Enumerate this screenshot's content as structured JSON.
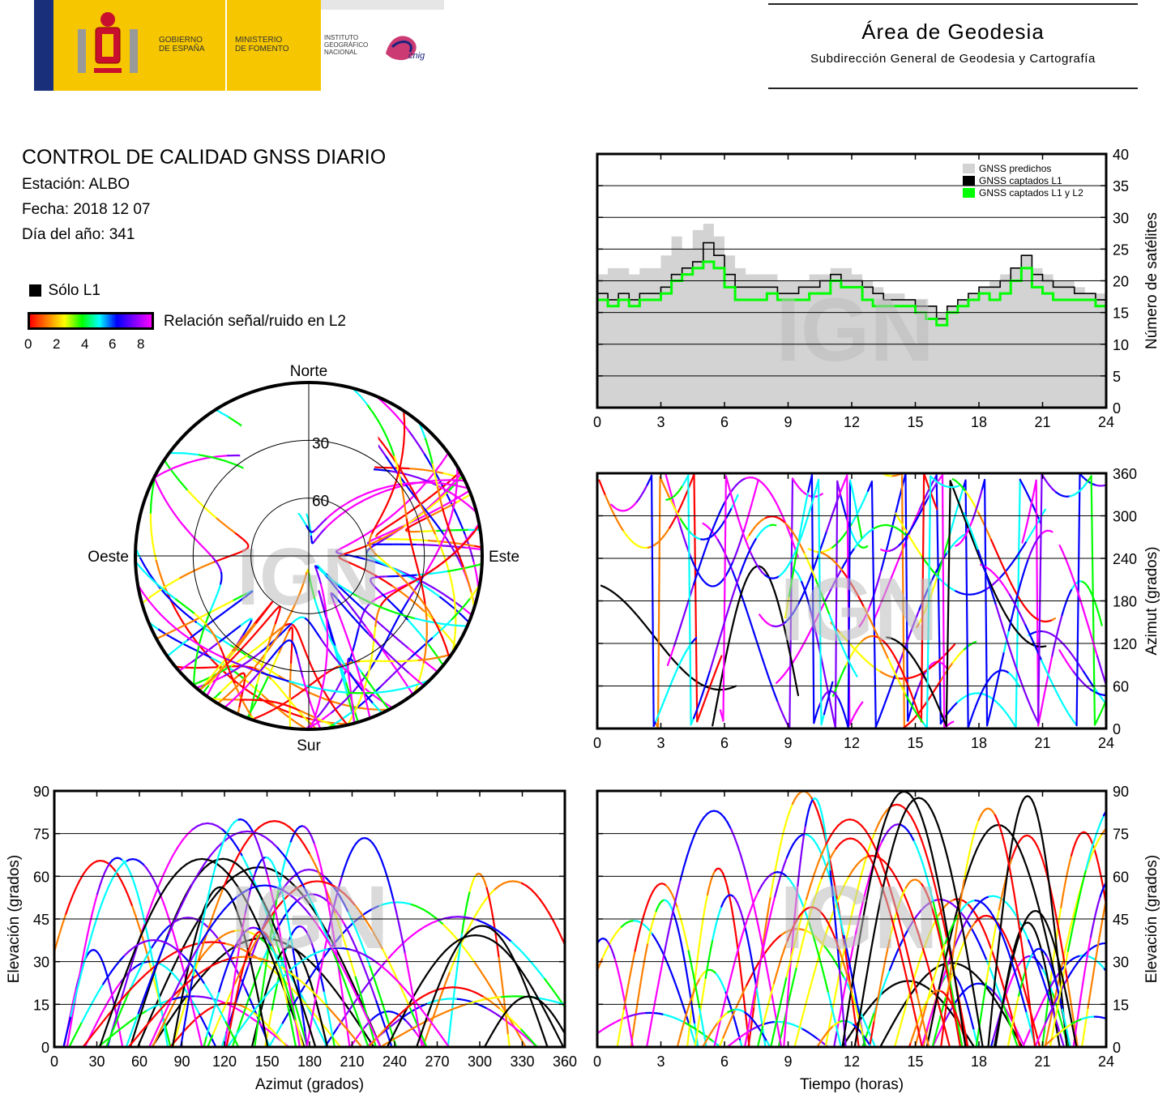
{
  "header": {
    "gov_line1": "GOBIERNO",
    "gov_line2": "DE ESPAÑA",
    "ministry_line1": "MINISTERIO",
    "ministry_line2": "DE FOMENTO",
    "institute_line1": "INSTITUTO",
    "institute_line2": "GEOGRÁFICO",
    "institute_line3": "NACIONAL",
    "cnig_logo": "cnig",
    "area_title": "Área de Geodesia",
    "area_subtitle": "Subdirección General de Geodesia y Cartografía"
  },
  "report": {
    "title": "CONTROL DE CALIDAD GNSS DIARIO",
    "station": "Estación: ALBO",
    "date": "Fecha: 2018 12 07",
    "doy": "Día del año: 341"
  },
  "legend": {
    "l1_only": "Sólo L1",
    "snr_label": "Relación señal/ruido en L2",
    "snr_ticks": [
      "0",
      "2",
      "4",
      "6",
      "8"
    ],
    "snr_colors": [
      "#ff0000",
      "#ff8000",
      "#ffff00",
      "#00ff00",
      "#00ffff",
      "#0000ff",
      "#8000ff",
      "#ff00ff"
    ]
  },
  "watermark": "IGN",
  "chart_data": [
    {
      "type": "line",
      "panel": "satellite-count",
      "x": [
        0,
        0.5,
        1,
        1.5,
        2,
        2.5,
        3,
        3.5,
        4,
        4.5,
        5,
        5.5,
        6,
        6.5,
        7,
        7.5,
        8,
        8.5,
        9,
        9.5,
        10,
        10.5,
        11,
        11.5,
        12,
        12.5,
        13,
        13.5,
        14,
        14.5,
        15,
        15.5,
        16,
        16.5,
        17,
        17.5,
        18,
        18.5,
        19,
        19.5,
        20,
        20.5,
        21,
        21.5,
        22,
        22.5,
        23,
        23.5,
        24
      ],
      "series": [
        {
          "name": "GNSS predichos",
          "color": "#d3d3d3",
          "values": [
            21,
            22,
            22,
            21,
            22,
            22,
            24,
            27,
            25,
            28,
            29,
            27,
            24,
            22,
            21,
            21,
            21,
            20,
            20,
            20,
            21,
            21,
            22,
            22,
            21,
            20,
            19,
            18,
            18,
            17,
            17,
            16,
            15,
            16,
            17,
            18,
            19,
            20,
            21,
            22,
            24,
            22,
            21,
            20,
            20,
            19,
            18,
            18,
            18
          ]
        },
        {
          "name": "GNSS captados L1",
          "color": "#000000",
          "values": [
            18,
            17,
            18,
            17,
            18,
            18,
            19,
            21,
            22,
            23,
            26,
            24,
            21,
            19,
            19,
            19,
            19,
            18,
            18,
            19,
            19,
            20,
            21,
            20,
            20,
            19,
            18,
            17,
            17,
            17,
            16,
            16,
            14,
            16,
            17,
            18,
            19,
            19,
            20,
            22,
            24,
            21,
            20,
            19,
            19,
            18,
            18,
            17,
            17
          ]
        },
        {
          "name": "GNSS captados L1 y L2",
          "color": "#00ff00",
          "values": [
            17,
            16,
            17,
            16,
            17,
            17,
            18,
            20,
            21,
            22,
            23,
            22,
            19,
            17,
            17,
            17,
            18,
            17,
            17,
            17,
            18,
            18,
            20,
            19,
            19,
            17,
            16,
            16,
            16,
            16,
            15,
            14,
            13,
            15,
            16,
            17,
            18,
            17,
            18,
            20,
            22,
            19,
            18,
            17,
            17,
            17,
            17,
            16,
            16
          ]
        }
      ],
      "xlim": [
        0,
        24
      ],
      "xticks": [
        "0",
        "3",
        "6",
        "9",
        "12",
        "15",
        "18",
        "21",
        "24"
      ],
      "ylim": [
        0,
        40
      ],
      "yticks": [
        "0",
        "5",
        "10",
        "15",
        "20",
        "25",
        "30",
        "35",
        "40"
      ],
      "ylabel": "Número de satélites",
      "legend_position": "top-right",
      "grid": "horizontal"
    },
    {
      "type": "line",
      "panel": "azimuth-time",
      "xlim": [
        0,
        24
      ],
      "xticks": [
        "0",
        "3",
        "6",
        "9",
        "12",
        "15",
        "18",
        "21",
        "24"
      ],
      "ylim": [
        0,
        360
      ],
      "yticks": [
        "0",
        "60",
        "120",
        "180",
        "240",
        "300",
        "360"
      ],
      "ylabel": "Azimut (grados)",
      "grid": "horizontal"
    },
    {
      "type": "polar",
      "panel": "skyplot",
      "labels": {
        "north": "Norte",
        "south": "Sur",
        "east": "Este",
        "west": "Oeste"
      },
      "rings": [
        "30",
        "60"
      ]
    },
    {
      "type": "line",
      "panel": "elevation-azimuth",
      "xlim": [
        0,
        360
      ],
      "xticks": [
        "0",
        "30",
        "60",
        "90",
        "120",
        "150",
        "180",
        "210",
        "240",
        "270",
        "300",
        "330",
        "360"
      ],
      "xlabel": "Azimut (grados)",
      "ylim": [
        0,
        90
      ],
      "yticks": [
        "0",
        "15",
        "30",
        "45",
        "60",
        "75",
        "90"
      ],
      "ylabel": "Elevación (grados)",
      "grid": "horizontal"
    },
    {
      "type": "line",
      "panel": "elevation-time",
      "xlim": [
        0,
        24
      ],
      "xticks": [
        "0",
        "3",
        "6",
        "9",
        "12",
        "15",
        "18",
        "21",
        "24"
      ],
      "xlabel": "Tiempo (horas)",
      "ylim": [
        0,
        90
      ],
      "yticks": [
        "0",
        "15",
        "30",
        "45",
        "60",
        "75",
        "90"
      ],
      "ylabel": "Elevación (grados)",
      "grid": "horizontal"
    }
  ]
}
